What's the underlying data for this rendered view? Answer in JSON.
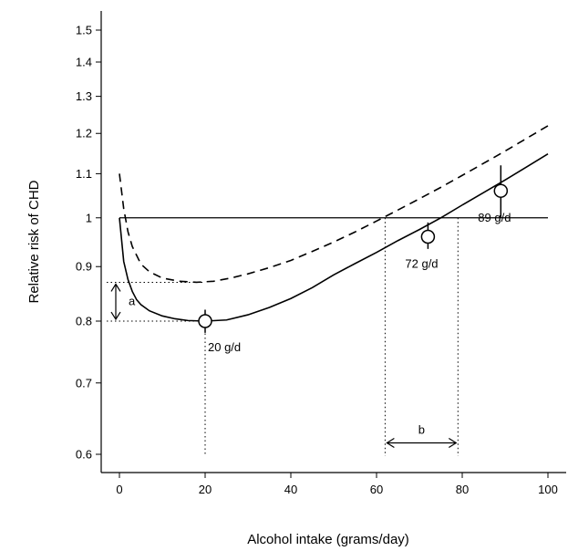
{
  "chart_data": {
    "type": "line",
    "xlabel": "Alcohol intake (grams/day)",
    "ylabel": "Relative risk of CHD",
    "xlim": [
      0,
      100
    ],
    "ylim": [
      0.6,
      1.5
    ],
    "y_scale": "log",
    "x_ticks": [
      "0",
      "20",
      "40",
      "60",
      "80",
      "100"
    ],
    "y_ticks": [
      "0.6",
      "0.7",
      "0.8",
      "0.9",
      "1",
      "1.1",
      "1.2",
      "1.3",
      "1.4",
      "1.5"
    ],
    "reference_line": {
      "y": 1.0
    },
    "series": [
      {
        "style": "solid",
        "x": [
          0,
          1,
          2,
          3,
          4,
          5,
          7,
          10,
          13,
          16,
          20,
          25,
          30,
          35,
          40,
          45,
          50,
          55,
          60,
          65,
          70,
          75,
          80,
          85,
          90,
          95,
          100
        ],
        "y": [
          1.0,
          0.91,
          0.875,
          0.853,
          0.838,
          0.829,
          0.818,
          0.809,
          0.804,
          0.801,
          0.8,
          0.802,
          0.811,
          0.824,
          0.84,
          0.86,
          0.884,
          0.906,
          0.928,
          0.952,
          0.975,
          1.0,
          1.028,
          1.056,
          1.085,
          1.116,
          1.148
        ]
      },
      {
        "style": "dashed",
        "x": [
          0,
          1,
          2,
          3,
          5,
          7,
          10,
          14,
          18,
          22,
          26,
          30,
          35,
          40,
          45,
          50,
          55,
          60,
          65,
          70,
          75,
          80,
          85,
          90,
          95,
          100
        ],
        "y": [
          1.1,
          1.02,
          0.97,
          0.94,
          0.905,
          0.89,
          0.878,
          0.872,
          0.87,
          0.872,
          0.878,
          0.886,
          0.898,
          0.912,
          0.93,
          0.949,
          0.97,
          0.993,
          1.017,
          1.042,
          1.068,
          1.096,
          1.125,
          1.155,
          1.187,
          1.22
        ]
      }
    ],
    "points": [
      {
        "x": 20,
        "y": 0.8,
        "y_low": 0.78,
        "y_high": 0.82,
        "label": "20 g/d"
      },
      {
        "x": 72,
        "y": 0.96,
        "y_low": 0.935,
        "y_high": 0.99,
        "label": "72 g/d"
      },
      {
        "x": 89,
        "y": 1.06,
        "y_low": 1.0,
        "y_high": 1.12,
        "label": "89 g/d"
      }
    ],
    "annotations": {
      "a": {
        "label": "a",
        "y_from": 0.8,
        "y_to": 0.87
      },
      "b": {
        "label": "b",
        "x_from": 62,
        "x_to": 79,
        "y": 0.615
      }
    }
  }
}
